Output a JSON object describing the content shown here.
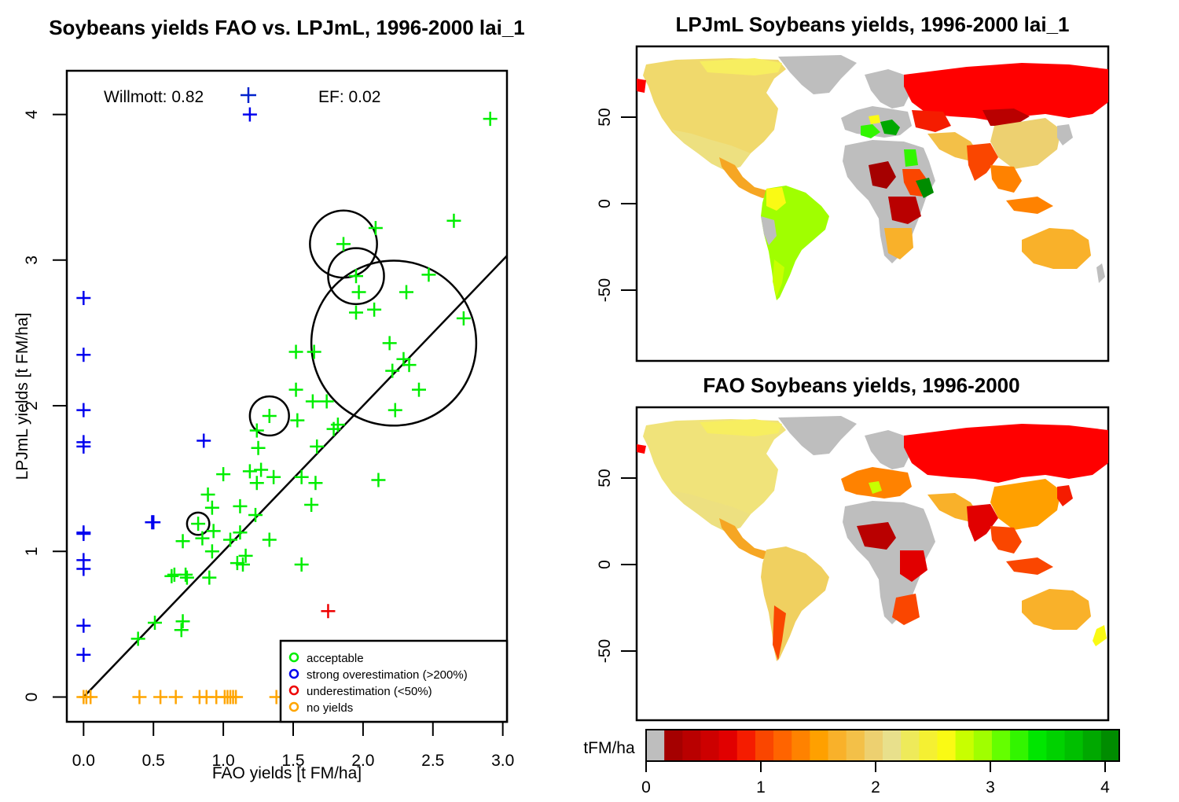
{
  "chart_data": [
    {
      "type": "scatter",
      "title": "Soybeans yields FAO vs. LPJmL, 1996-2000 lai_1",
      "xlabel": "FAO yields [t FM/ha]",
      "ylabel": "LPJmL yields [t FM/ha]",
      "xlim": [
        -0.12,
        3.03
      ],
      "ylim": [
        -0.17,
        4.3
      ],
      "xticks": [
        "0.0",
        "0.5",
        "1.0",
        "1.5",
        "2.0",
        "2.5",
        "3.0"
      ],
      "yticks": [
        "0",
        "1",
        "2",
        "3",
        "4"
      ],
      "annotations": {
        "willmott": "Willmott: 0.82",
        "ef": "EF: 0.02"
      },
      "fit_line": {
        "x": [
          0.0,
          3.03
        ],
        "y": [
          0.0,
          3.03
        ]
      },
      "legend": {
        "position": "bottom-right",
        "items": [
          {
            "label": "acceptable",
            "color": "#00ee00"
          },
          {
            "label": "strong overestimation (>200%)",
            "color": "#0000ee"
          },
          {
            "label": "underestimation (<50%)",
            "color": "#ee0000"
          },
          {
            "label": "no yields",
            "color": "#ffa500"
          }
        ]
      },
      "series": [
        {
          "name": "acceptable",
          "color": "#00ee00",
          "points": [
            [
              2.91,
              3.97
            ],
            [
              2.65,
              3.27
            ],
            [
              2.09,
              3.22
            ],
            [
              1.86,
              3.11
            ],
            [
              1.95,
              2.89
            ],
            [
              1.97,
              2.78
            ],
            [
              2.31,
              2.78
            ],
            [
              2.47,
              2.9
            ],
            [
              1.95,
              2.64
            ],
            [
              2.08,
              2.66
            ],
            [
              2.72,
              2.6
            ],
            [
              2.19,
              2.43
            ],
            [
              2.21,
              2.24
            ],
            [
              2.29,
              2.32
            ],
            [
              2.33,
              2.28
            ],
            [
              1.52,
              2.37
            ],
            [
              1.65,
              2.37
            ],
            [
              1.52,
              2.11
            ],
            [
              2.4,
              2.11
            ],
            [
              1.74,
              2.03
            ],
            [
              1.33,
              1.93
            ],
            [
              1.53,
              1.9
            ],
            [
              1.64,
              2.03
            ],
            [
              2.23,
              1.97
            ],
            [
              1.24,
              1.83
            ],
            [
              1.79,
              1.84
            ],
            [
              1.82,
              1.87
            ],
            [
              1.25,
              1.71
            ],
            [
              1.67,
              1.72
            ],
            [
              1.27,
              1.56
            ],
            [
              1.19,
              1.55
            ],
            [
              1.0,
              1.53
            ],
            [
              1.36,
              1.51
            ],
            [
              1.56,
              1.51
            ],
            [
              1.24,
              1.47
            ],
            [
              1.66,
              1.47
            ],
            [
              2.11,
              1.49
            ],
            [
              0.89,
              1.39
            ],
            [
              0.92,
              1.3
            ],
            [
              1.12,
              1.31
            ],
            [
              1.63,
              1.32
            ],
            [
              1.23,
              1.25
            ],
            [
              0.82,
              1.19
            ],
            [
              0.93,
              1.14
            ],
            [
              1.12,
              1.13
            ],
            [
              0.71,
              1.07
            ],
            [
              0.85,
              1.09
            ],
            [
              1.05,
              1.08
            ],
            [
              1.33,
              1.08
            ],
            [
              0.92,
              1.0
            ],
            [
              1.16,
              0.97
            ],
            [
              1.1,
              0.92
            ],
            [
              1.14,
              0.91
            ],
            [
              1.56,
              0.91
            ],
            [
              0.63,
              0.83
            ],
            [
              0.65,
              0.84
            ],
            [
              0.73,
              0.84
            ],
            [
              0.74,
              0.82
            ],
            [
              0.9,
              0.82
            ],
            [
              0.51,
              0.51
            ],
            [
              0.71,
              0.52
            ],
            [
              0.7,
              0.46
            ],
            [
              0.39,
              0.4
            ]
          ]
        },
        {
          "name": "strong overestimation (>200%)",
          "color": "#0000ee",
          "points": [
            [
              0.0,
              2.74
            ],
            [
              0.0,
              2.35
            ],
            [
              0.0,
              1.97
            ],
            [
              0.0,
              1.75
            ],
            [
              0.0,
              1.72
            ],
            [
              0.0,
              1.13
            ],
            [
              0.0,
              1.12
            ],
            [
              0.0,
              0.94
            ],
            [
              0.0,
              0.88
            ],
            [
              0.0,
              0.49
            ],
            [
              0.0,
              0.29
            ],
            [
              0.86,
              1.76
            ],
            [
              0.49,
              1.2
            ],
            [
              0.5,
              1.2
            ],
            [
              1.19,
              4.0
            ]
          ]
        },
        {
          "name": "underestimation (<50%)",
          "color": "#ee0000",
          "points": [
            [
              1.75,
              0.59
            ]
          ]
        },
        {
          "name": "no yields",
          "color": "#ffa500",
          "points": [
            [
              0.0,
              0.0
            ],
            [
              0.02,
              0.0
            ],
            [
              0.05,
              0.0
            ],
            [
              0.4,
              0.0
            ],
            [
              0.55,
              0.0
            ],
            [
              0.66,
              0.0
            ],
            [
              0.83,
              0.0
            ],
            [
              0.88,
              0.0
            ],
            [
              0.95,
              0.0
            ],
            [
              1.01,
              0.0
            ],
            [
              1.03,
              0.0
            ],
            [
              1.05,
              0.0
            ],
            [
              1.07,
              0.0
            ],
            [
              1.09,
              0.0
            ],
            [
              1.38,
              0.0
            ]
          ]
        }
      ],
      "circles": [
        {
          "x": 1.86,
          "y": 3.11,
          "r": 0.24
        },
        {
          "x": 1.95,
          "y": 2.89,
          "r": 0.2
        },
        {
          "x": 2.22,
          "y": 2.43,
          "r": 0.59
        },
        {
          "x": 1.33,
          "y": 1.93,
          "r": 0.14
        },
        {
          "x": 0.82,
          "y": 1.19,
          "r": 0.08
        }
      ]
    },
    {
      "type": "map",
      "title": "LPJmL Soybeans yields, 1996-2000 lai_1",
      "yticks": [
        "50",
        "0",
        "-50"
      ]
    },
    {
      "type": "map",
      "title": "FAO Soybeans yields, 1996-2000",
      "yticks": [
        "50",
        "0",
        "-50"
      ]
    },
    {
      "type": "colorbar",
      "label": "tFM/ha",
      "ticks": [
        "0",
        "1",
        "2",
        "3",
        "4"
      ],
      "colors": [
        "#bebebe",
        "#a50000",
        "#b90000",
        "#cd0000",
        "#e10000",
        "#f51c00",
        "#fa4600",
        "#ff6400",
        "#ff8200",
        "#ffa000",
        "#f9b12a",
        "#f3c048",
        "#edd070",
        "#e8e08c",
        "#eeea5a",
        "#f5f032",
        "#fafa14",
        "#c8ff00",
        "#a0ff00",
        "#64ff00",
        "#32f500",
        "#00e600",
        "#00d200",
        "#00bf00",
        "#00a800",
        "#008c00"
      ]
    }
  ]
}
